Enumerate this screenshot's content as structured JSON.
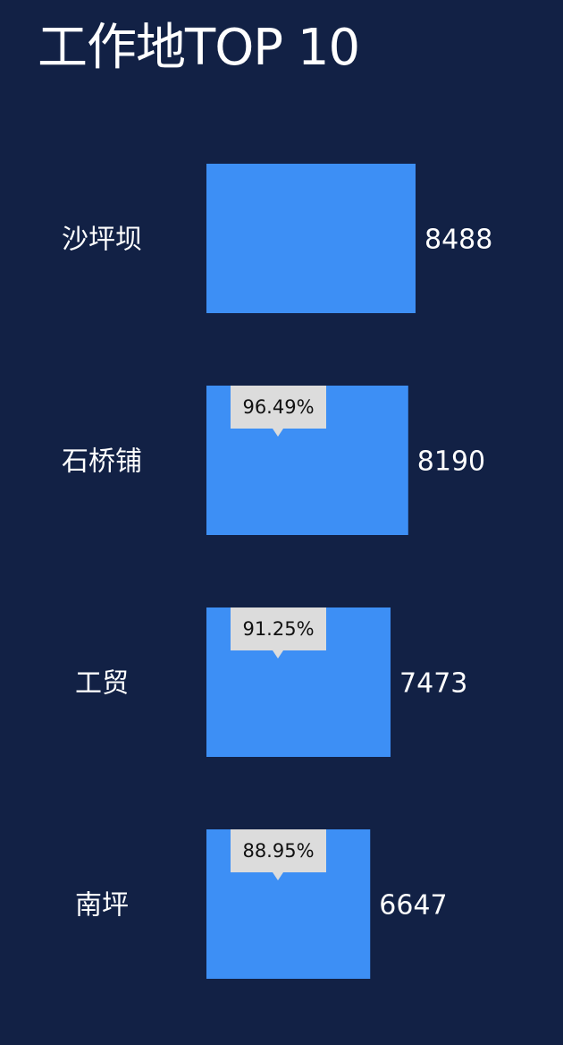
{
  "chart_data": {
    "type": "bar",
    "orientation": "horizontal",
    "title": "工作地TOP 10",
    "categories": [
      "沙坪坝",
      "石桥铺",
      "工贸",
      "南坪"
    ],
    "values": [
      8488,
      8190,
      7473,
      6647
    ],
    "ratio_labels": [
      "",
      "96.49%",
      "91.25%",
      "88.95%"
    ],
    "xlim": [
      0,
      8488
    ],
    "grid": false,
    "legend": "none",
    "colors": {
      "background": "#122145",
      "bar": "#3d8ff5",
      "text": "#ffffff",
      "tooltip_bg": "#dcdcdc",
      "tooltip_text": "#111111"
    }
  }
}
